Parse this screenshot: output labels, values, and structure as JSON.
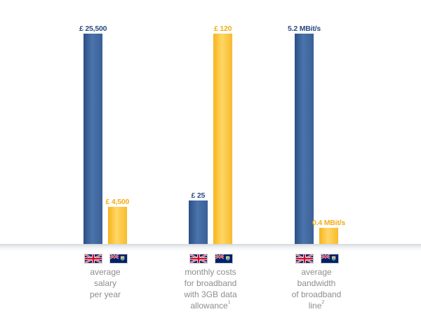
{
  "chart_data": {
    "type": "bar",
    "series": [
      {
        "key": "uk",
        "color": "#3a6198"
      },
      {
        "key": "sh",
        "color": "#fbbf2a"
      }
    ],
    "groups": [
      {
        "category_lines": [
          "average",
          "salary",
          "per year"
        ],
        "footnote": "",
        "bars": [
          {
            "value": 25500,
            "label": "£ 25,500"
          },
          {
            "value": 4500,
            "label": "£ 4,500"
          }
        ]
      },
      {
        "category_lines": [
          "monthly costs",
          "for broadband",
          "with 3GB data",
          "allowance"
        ],
        "footnote": "1",
        "bars": [
          {
            "value": 25,
            "label": "£ 25"
          },
          {
            "value": 120,
            "label": "£ 120"
          }
        ]
      },
      {
        "category_lines": [
          "average",
          "bandwidth",
          "of broadband",
          "line"
        ],
        "footnote": "2",
        "bars": [
          {
            "value": 5.2,
            "label": "5.2 MBit/s"
          },
          {
            "value": 0.4,
            "label": "0.4 MBit/s"
          }
        ]
      }
    ],
    "flag_icons": [
      "uk-flag-icon",
      "saint-helena-flag-icon"
    ],
    "ylim": [
      0,
      "max"
    ],
    "grid": false
  }
}
